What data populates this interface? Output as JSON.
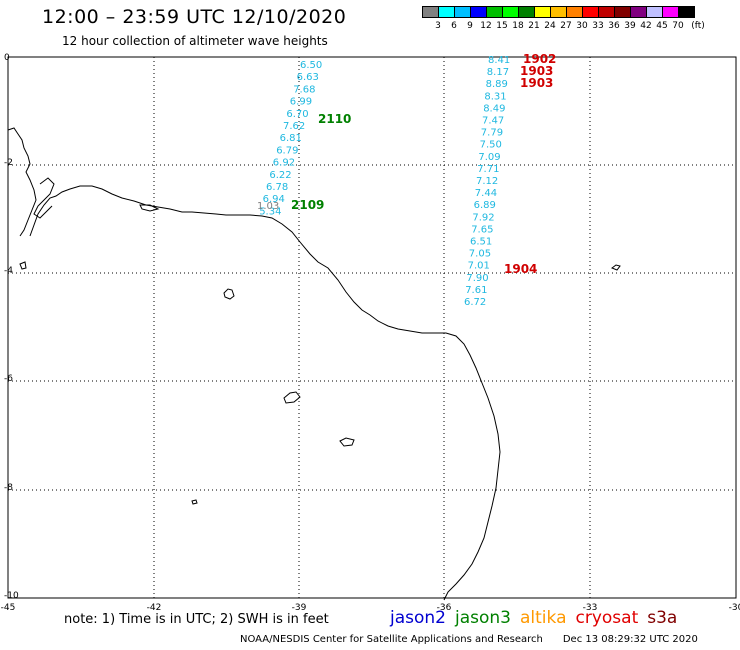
{
  "header": {
    "title": "12:00 – 23:59 UTC 12/10/2020",
    "subtitle": "12 hour collection of altimeter wave heights"
  },
  "color_scale": {
    "colors": [
      "#808080",
      "#00ffff",
      "#00bfff",
      "#0000ff",
      "#00bf00",
      "#00ff00",
      "#008000",
      "#ffff00",
      "#ffbf00",
      "#ff8000",
      "#ff0000",
      "#c00000",
      "#800000",
      "#800080",
      "#c0c0ff",
      "#ff00ff",
      "#000000"
    ],
    "labels": [
      "3",
      "6",
      "9",
      "12",
      "15",
      "18",
      "21",
      "24",
      "27",
      "30",
      "33",
      "36",
      "39",
      "42",
      "45",
      "70",
      "(ft)"
    ]
  },
  "axes": {
    "x_ticks": [
      "-45",
      "-42",
      "-39",
      "-36",
      "-33",
      "-30"
    ],
    "y_ticks": [
      "0",
      "-2",
      "-4",
      "-6",
      "-8",
      "-10"
    ]
  },
  "tracks": [
    {
      "color": "#1fb8e0",
      "label": "2110",
      "label_color": "#008000",
      "values": [
        "6.50",
        "6.63",
        "7.68",
        "6.99",
        "6.70",
        "7.62",
        "6.81",
        "6.79",
        "6.92",
        "6.22",
        "6.78",
        "6.94",
        "5.34"
      ]
    },
    {
      "color": "#808080",
      "label": "2109",
      "label_color": "#008000",
      "values": [
        "1.03"
      ]
    },
    {
      "color": "#1fb8e0",
      "values": [
        "8.41",
        "8.17",
        "8.89",
        "8.31",
        "8.49",
        "7.47",
        "7.79",
        "7.50",
        "7.09",
        "7.71",
        "7.12",
        "7.44",
        "6.89",
        "7.92",
        "7.65",
        "6.51",
        "7.05",
        "7.01",
        "7.90",
        "7.61",
        "6.72"
      ]
    }
  ],
  "track_labels": [
    {
      "text": "1902",
      "color": "#d00000"
    },
    {
      "text": "1903",
      "color": "#d00000"
    },
    {
      "text": "1903",
      "color": "#d00000"
    },
    {
      "text": "1904",
      "color": "#d00000"
    }
  ],
  "footer": {
    "note": "note: 1) Time is in UTC; 2) SWH is in feet",
    "satellites": [
      {
        "name": "jason2",
        "color": "#0000d0"
      },
      {
        "name": "jason3",
        "color": "#008000"
      },
      {
        "name": "altika",
        "color": "#ff9900"
      },
      {
        "name": "cryosat",
        "color": "#e00000"
      },
      {
        "name": "s3a",
        "color": "#800000"
      }
    ],
    "credit": "NOAA/NESDIS Center for Satellite Applications and Research",
    "timestamp": "Dec 13 08:29:32 UTC 2020"
  }
}
